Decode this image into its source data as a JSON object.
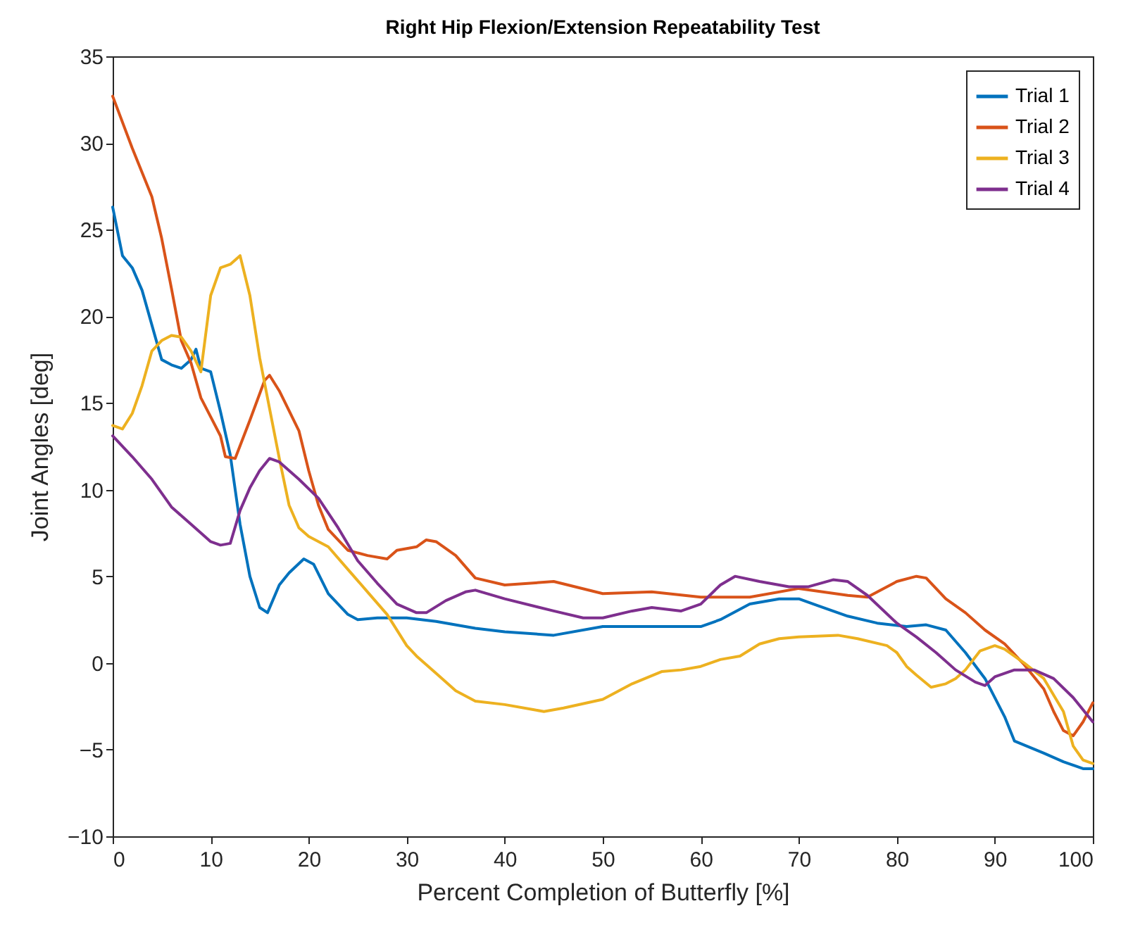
{
  "chart_data": {
    "type": "line",
    "title": "Right Hip Flexion/Extension Repeatability Test",
    "xlabel": "Percent Completion of Butterfly [%]",
    "ylabel": "Joint Angles [deg]",
    "xlim": [
      0,
      100
    ],
    "xticks": [
      0,
      10,
      20,
      30,
      40,
      50,
      60,
      70,
      80,
      90,
      100
    ],
    "ylim": [
      -10,
      35
    ],
    "yticks": [
      -10,
      -5,
      0,
      5,
      10,
      15,
      20,
      25,
      30,
      35
    ],
    "grid": false,
    "legend": "top right",
    "line_style": "solid",
    "marker": "none",
    "series": [
      {
        "name": "Trial 1",
        "color": "#0072bd",
        "x": [
          0,
          1,
          2,
          3,
          4,
          5,
          6,
          7,
          8,
          8.5,
          9,
          10,
          11,
          12,
          13,
          14,
          15,
          15.8,
          17,
          18,
          19.5,
          20.5,
          22,
          24,
          25,
          27,
          30,
          33,
          37,
          40,
          45,
          50,
          55,
          60,
          62,
          65,
          68,
          70,
          72,
          75,
          78,
          81,
          83,
          85,
          87,
          89,
          91,
          92,
          95,
          97,
          99,
          100
        ],
        "values": [
          26.3,
          23.5,
          22.8,
          21.5,
          19.5,
          17.5,
          17.2,
          17.0,
          17.5,
          18.1,
          17.0,
          16.8,
          14.5,
          12,
          8,
          5,
          3.2,
          2.9,
          4.5,
          5.2,
          6.0,
          5.7,
          4,
          2.8,
          2.5,
          2.6,
          2.6,
          2.4,
          2.0,
          1.8,
          1.6,
          2.1,
          2.1,
          2.1,
          2.5,
          3.4,
          3.7,
          3.7,
          3.3,
          2.7,
          2.3,
          2.1,
          2.2,
          1.9,
          0.6,
          -0.9,
          -3.1,
          -4.5,
          -5.2,
          -5.7,
          -6.1,
          -6.1
        ]
      },
      {
        "name": "Trial 2",
        "color": "#d95319",
        "x": [
          0,
          2,
          4,
          5,
          6,
          7,
          8,
          9,
          10,
          11,
          11.5,
          12.5,
          14,
          15.5,
          16,
          17,
          19,
          20,
          21,
          22,
          24,
          26,
          28,
          29,
          30,
          31,
          32,
          33,
          35,
          37,
          40,
          45,
          50,
          55,
          60,
          65,
          70,
          75,
          77,
          80,
          82,
          83,
          85,
          87,
          89,
          91,
          93,
          95,
          96,
          97,
          98,
          99,
          100
        ],
        "values": [
          32.7,
          29.7,
          26.9,
          24.5,
          21.6,
          18.6,
          17.3,
          15.3,
          14.2,
          13.1,
          11.9,
          11.8,
          14.0,
          16.3,
          16.6,
          15.7,
          13.4,
          11.1,
          9.1,
          7.7,
          6.5,
          6.2,
          6.0,
          6.5,
          6.6,
          6.7,
          7.1,
          7.0,
          6.2,
          4.9,
          4.5,
          4.7,
          4.0,
          4.1,
          3.8,
          3.8,
          4.3,
          3.9,
          3.8,
          4.7,
          5.0,
          4.9,
          3.7,
          2.9,
          1.9,
          1.1,
          -0.1,
          -1.5,
          -2.8,
          -3.9,
          -4.2,
          -3.4,
          -2.3
        ]
      },
      {
        "name": "Trial 3",
        "color": "#edb120",
        "x": [
          0,
          1,
          2,
          3,
          4,
          5,
          6,
          7,
          8,
          9,
          10,
          11,
          12,
          13,
          14,
          15,
          16,
          17,
          18,
          19,
          20,
          22,
          24,
          26,
          28,
          30,
          31,
          33,
          35,
          37,
          40,
          43,
          44,
          46,
          50,
          53,
          56,
          58,
          60,
          62,
          64,
          66,
          68,
          70,
          74,
          76,
          79,
          80,
          81,
          82,
          83.5,
          85,
          86,
          87,
          88.5,
          90,
          91,
          93,
          95,
          97,
          98,
          99,
          100
        ],
        "values": [
          13.7,
          13.5,
          14.4,
          16,
          18,
          18.6,
          18.9,
          18.8,
          18,
          16.8,
          21.2,
          22.8,
          23.0,
          23.5,
          21.2,
          17.6,
          14.7,
          11.8,
          9.1,
          7.8,
          7.3,
          6.7,
          5.4,
          4.1,
          2.8,
          1.0,
          0.4,
          -0.6,
          -1.6,
          -2.2,
          -2.4,
          -2.7,
          -2.8,
          -2.6,
          -2.1,
          -1.2,
          -0.5,
          -0.4,
          -0.2,
          0.2,
          0.4,
          1.1,
          1.4,
          1.5,
          1.6,
          1.4,
          1.0,
          0.6,
          -0.2,
          -0.7,
          -1.4,
          -1.2,
          -0.9,
          -0.4,
          0.7,
          1.0,
          0.8,
          0,
          -0.9,
          -2.8,
          -4.8,
          -5.6,
          -5.8
        ]
      },
      {
        "name": "Trial 4",
        "color": "#7e2f8e",
        "x": [
          0,
          2,
          4,
          6,
          7,
          8,
          10,
          11,
          12,
          13,
          14,
          15,
          16,
          17,
          19,
          21,
          23,
          25,
          27,
          29,
          31,
          32,
          34,
          36,
          37,
          40,
          45,
          48,
          50,
          53,
          55,
          58,
          60,
          62,
          63.5,
          66,
          69,
          71,
          73.5,
          75,
          77,
          80,
          82,
          84,
          86,
          88,
          89,
          90,
          92,
          94,
          96,
          98,
          100
        ],
        "values": [
          13.1,
          11.9,
          10.6,
          9.0,
          8.5,
          8.0,
          7.0,
          6.8,
          6.9,
          8.8,
          10.1,
          11.1,
          11.8,
          11.6,
          10.6,
          9.5,
          7.8,
          5.9,
          4.6,
          3.4,
          2.9,
          2.9,
          3.6,
          4.1,
          4.2,
          3.7,
          3.0,
          2.6,
          2.6,
          3.0,
          3.2,
          3.0,
          3.4,
          4.5,
          5.0,
          4.7,
          4.4,
          4.4,
          4.8,
          4.7,
          3.9,
          2.3,
          1.5,
          0.6,
          -0.4,
          -1.1,
          -1.3,
          -0.8,
          -0.4,
          -0.4,
          -0.9,
          -2.0,
          -3.4
        ]
      }
    ]
  }
}
